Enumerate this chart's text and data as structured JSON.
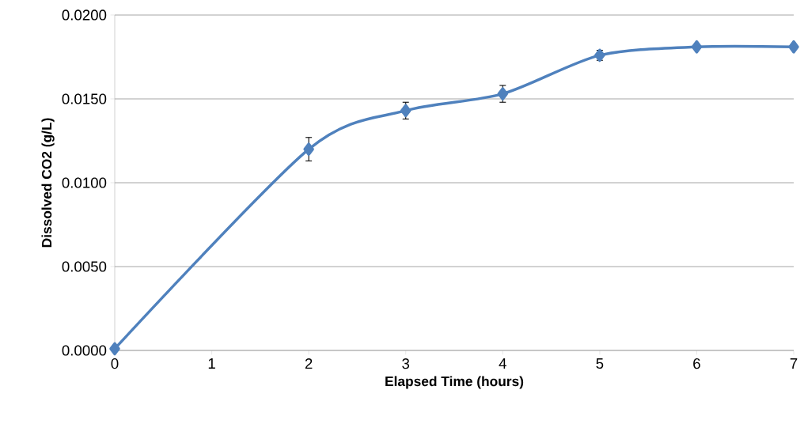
{
  "chart_data": {
    "type": "line",
    "xlabel": "Elapsed Time (hours)",
    "ylabel": "Dissolved CO2 (g/L)",
    "x": [
      0,
      2,
      3,
      4,
      5,
      6,
      7
    ],
    "values": [
      0.0001,
      0.012,
      0.0143,
      0.0153,
      0.0176,
      0.0181,
      0.0181
    ],
    "errors": [
      null,
      0.0007,
      0.0005,
      0.0005,
      0.0003,
      null,
      null
    ],
    "color": "#4f81bd",
    "marker": "diamond",
    "line_style": "solid",
    "grid": "y",
    "xlim": [
      0,
      7
    ],
    "xticks": [
      0,
      1,
      2,
      3,
      4,
      5,
      6,
      7
    ],
    "ylim": [
      0,
      0.02
    ],
    "yticks": [
      {
        "value": 0,
        "label": "0.0000"
      },
      {
        "value": 0.005,
        "label": "0.0050"
      },
      {
        "value": 0.01,
        "label": "0.0100"
      },
      {
        "value": 0.015,
        "label": "0.0150"
      },
      {
        "value": 0.02,
        "label": "0.0200"
      }
    ]
  }
}
